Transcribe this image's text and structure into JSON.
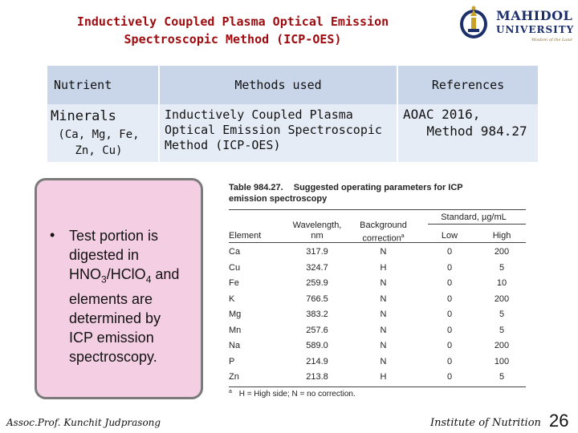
{
  "slide": {
    "title_line1": "Inductively Coupled Plasma Optical Emission",
    "title_line2": "Spectroscopic Method (ICP-OES)"
  },
  "logo": {
    "name": "MAHIDOL",
    "university": "UNIVERSITY",
    "motto": "Wisdom of the Land"
  },
  "summary_table": {
    "headers": {
      "nutrient": "Nutrient",
      "methods": "Methods used",
      "references": "References"
    },
    "row": {
      "nutrient_main": "Minerals",
      "nutrient_detail_1": "(Ca, Mg, Fe,",
      "nutrient_detail_2": "Zn, Cu)",
      "method_1": "Inductively Coupled Plasma",
      "method_2": "Optical Emission Spectroscopic",
      "method_3": "Method (ICP-OES)",
      "reference_1": "AOAC 2016,",
      "reference_2": "Method 984.27"
    }
  },
  "callout": {
    "bullet": "•",
    "line1": "Test portion is",
    "line2": "digested in",
    "line3_pre": "HNO",
    "line3_sub1": "3",
    "line3_mid": "/HClO",
    "line3_sub2": "4",
    "line3_post": " and",
    "line4": "elements are",
    "line5": "determined by",
    "line6": "ICP emission",
    "line7": "spectroscopy."
  },
  "aoac_table": {
    "caption_label": "Table 984.27.",
    "caption_text": "Suggested operating parameters for ICP",
    "caption_text2": "emission spectroscopy",
    "col_element": "Element",
    "col_wavelength_1": "Wavelength,",
    "col_wavelength_2": "nm",
    "col_background_1": "Background",
    "col_background_2": "correction",
    "col_background_sup": "a",
    "col_standard": "Standard, µg/mL",
    "col_low": "Low",
    "col_high": "High",
    "rows": [
      {
        "element": "Ca",
        "wavelength": "317.9",
        "correction": "N",
        "low": "0",
        "high": "200"
      },
      {
        "element": "Cu",
        "wavelength": "324.7",
        "correction": "H",
        "low": "0",
        "high": "5"
      },
      {
        "element": "Fe",
        "wavelength": "259.9",
        "correction": "N",
        "low": "0",
        "high": "10"
      },
      {
        "element": "K",
        "wavelength": "766.5",
        "correction": "N",
        "low": "0",
        "high": "200"
      },
      {
        "element": "Mg",
        "wavelength": "383.2",
        "correction": "N",
        "low": "0",
        "high": "5"
      },
      {
        "element": "Mn",
        "wavelength": "257.6",
        "correction": "N",
        "low": "0",
        "high": "5"
      },
      {
        "element": "Na",
        "wavelength": "589.0",
        "correction": "N",
        "low": "0",
        "high": "200"
      },
      {
        "element": "P",
        "wavelength": "214.9",
        "correction": "N",
        "low": "0",
        "high": "100"
      },
      {
        "element": "Zn",
        "wavelength": "213.8",
        "correction": "H",
        "low": "0",
        "high": "5"
      }
    ],
    "footnote_sup": "a",
    "footnote": "H = High side; N = no correction."
  },
  "footer": {
    "author": "Assoc.Prof. Kunchit Judprasong",
    "institute": "Institute of Nutrition",
    "page": "26"
  },
  "colors": {
    "title": "#9e0b0f",
    "header_fill": "#c9d6ea",
    "cell_fill": "#e6ecf6",
    "callout_fill": "#f4cfe4",
    "logo_blue": "#1c2f6b"
  }
}
